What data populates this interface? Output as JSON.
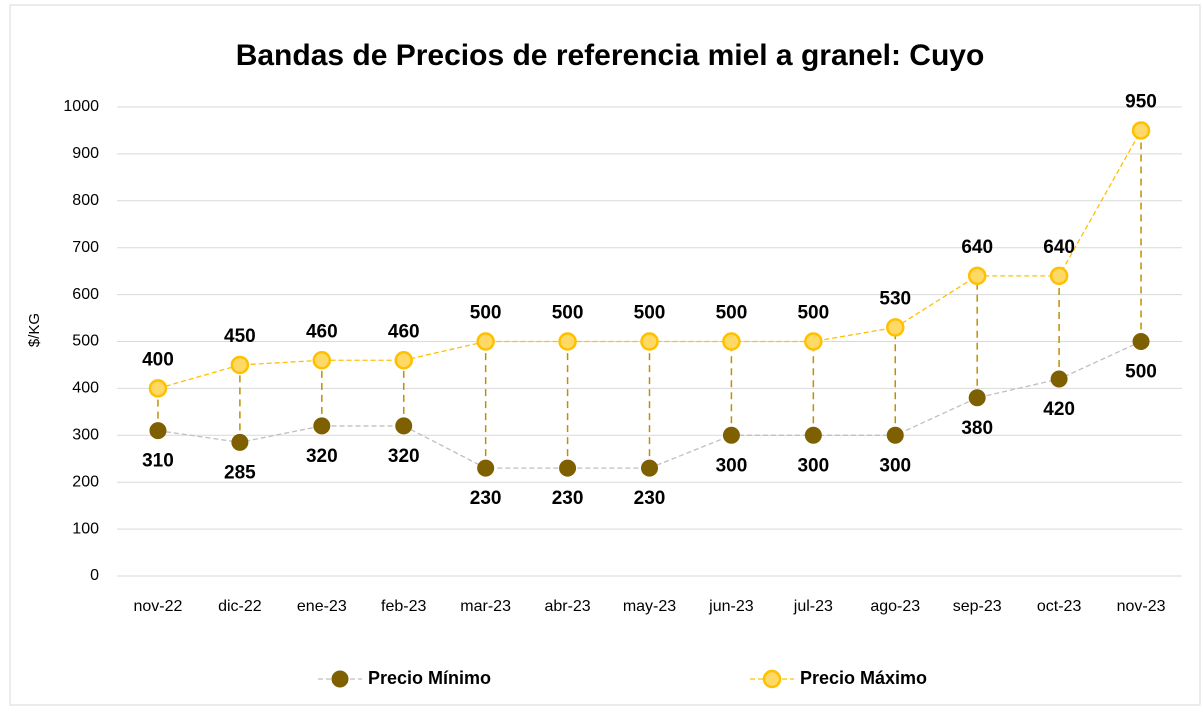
{
  "chart_data": {
    "type": "line",
    "title": "Bandas de Precios de referencia miel a granel: Cuyo",
    "y_label": "$/KG",
    "categories": [
      "nov-22",
      "dic-22",
      "ene-23",
      "feb-23",
      "mar-23",
      "abr-23",
      "may-23",
      "jun-23",
      "jul-23",
      "ago-23",
      "sep-23",
      "oct-23",
      "nov-23"
    ],
    "series": [
      {
        "name": "Precio Mínimo",
        "color": "#7f6000",
        "line_color": "#bfbfbf",
        "values": [
          310,
          285,
          320,
          320,
          230,
          230,
          230,
          300,
          300,
          300,
          380,
          420,
          500
        ]
      },
      {
        "name": "Precio Máximo",
        "color": "#ffd966",
        "line_color": "#ffc000",
        "values": [
          400,
          450,
          460,
          460,
          500,
          500,
          500,
          500,
          500,
          530,
          640,
          640,
          950
        ]
      }
    ],
    "ylim": [
      0,
      1000
    ],
    "yticks": [
      0,
      100,
      200,
      300,
      400,
      500,
      600,
      700,
      800,
      900,
      1000
    ],
    "grid": true,
    "drop_lines": true,
    "drop_line_color": "#bf9000",
    "legend": "bottom"
  }
}
